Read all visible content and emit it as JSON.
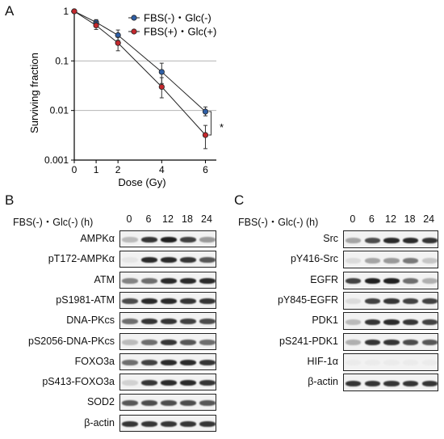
{
  "panels": {
    "a": "A",
    "b": "B",
    "c": "C"
  },
  "chart_data": {
    "type": "line",
    "xlabel": "Dose (Gy)",
    "ylabel": "Surviving fraction",
    "log_y": true,
    "ylim": [
      0.001,
      1
    ],
    "xlim": [
      0,
      6.5
    ],
    "x_ticks": [
      "0",
      "1",
      "2",
      "4",
      "6"
    ],
    "y_ticks": [
      "0.001",
      "0.01",
      "0.1",
      "1"
    ],
    "grid": "horizontal at 0.1 and 0.01",
    "legend_position": "top-right",
    "significance_mark": "*",
    "series": [
      {
        "name": "FBS(-)・Glc(-)",
        "color": "#2f5fa6",
        "x": [
          0,
          1,
          2,
          4,
          6
        ],
        "y": [
          1,
          0.6,
          0.33,
          0.06,
          0.0095
        ],
        "err_low": [
          1,
          0.52,
          0.26,
          0.035,
          0.0078
        ],
        "err_high": [
          1,
          0.68,
          0.42,
          0.09,
          0.0118
        ]
      },
      {
        "name": "FBS(+)・Glc(+)",
        "color": "#c4282d",
        "x": [
          0,
          1,
          2,
          4,
          6
        ],
        "y": [
          1,
          0.52,
          0.23,
          0.03,
          0.0032
        ],
        "err_low": [
          1,
          0.43,
          0.16,
          0.018,
          0.0017
        ],
        "err_high": [
          1,
          0.62,
          0.3,
          0.046,
          0.005
        ]
      }
    ]
  },
  "blot_b": {
    "header": "FBS(-)・Glc(-) (h)",
    "lanes": [
      "0",
      "6",
      "12",
      "18",
      "24"
    ],
    "rows": [
      {
        "label": "AMPKα",
        "intensity": [
          0.25,
          0.85,
          0.95,
          0.8,
          0.4
        ]
      },
      {
        "label": "pT172-AMPKα",
        "intensity": [
          0.05,
          0.9,
          0.9,
          0.85,
          0.7
        ]
      },
      {
        "label": "ATM",
        "intensity": [
          0.5,
          0.6,
          0.9,
          0.9,
          0.9
        ]
      },
      {
        "label": "pS1981-ATM",
        "intensity": [
          0.75,
          0.9,
          0.9,
          0.85,
          0.85
        ]
      },
      {
        "label": "DNA-PKcs",
        "intensity": [
          0.6,
          0.85,
          0.85,
          0.8,
          0.75
        ]
      },
      {
        "label": "pS2056-DNA-PKcs",
        "intensity": [
          0.25,
          0.6,
          0.85,
          0.7,
          0.6
        ]
      },
      {
        "label": "FOXO3a",
        "intensity": [
          0.6,
          0.8,
          0.9,
          0.9,
          0.85
        ]
      },
      {
        "label": "pS413-FOXO3a",
        "intensity": [
          0.15,
          0.85,
          0.9,
          0.9,
          0.85
        ]
      },
      {
        "label": "SOD2",
        "intensity": [
          0.7,
          0.75,
          0.75,
          0.75,
          0.7
        ]
      },
      {
        "label": "β-actin",
        "intensity": [
          0.85,
          0.85,
          0.85,
          0.85,
          0.85
        ]
      }
    ]
  },
  "blot_c": {
    "header": "FBS(-)・Glc(-) (h)",
    "lanes": [
      "0",
      "6",
      "12",
      "18",
      "24"
    ],
    "rows": [
      {
        "label": "Src",
        "intensity": [
          0.35,
          0.75,
          0.9,
          0.9,
          0.85
        ]
      },
      {
        "label": "pY416-Src",
        "intensity": [
          0.1,
          0.35,
          0.4,
          0.55,
          0.2
        ]
      },
      {
        "label": "EGFR",
        "intensity": [
          0.8,
          0.95,
          0.95,
          0.6,
          0.3
        ]
      },
      {
        "label": "pY845-EGFR",
        "intensity": [
          0.1,
          0.8,
          0.85,
          0.8,
          0.8
        ]
      },
      {
        "label": "PDK1",
        "intensity": [
          0.25,
          0.85,
          0.9,
          0.85,
          0.8
        ]
      },
      {
        "label": "pS241-PDK1",
        "intensity": [
          0.3,
          0.85,
          0.85,
          0.75,
          0.7
        ]
      },
      {
        "label": "HIF-1α",
        "intensity": [
          0.03,
          0.03,
          0.03,
          0.03,
          0.03
        ]
      },
      {
        "label": "β-actin",
        "intensity": [
          0.85,
          0.85,
          0.85,
          0.85,
          0.85
        ]
      }
    ]
  }
}
